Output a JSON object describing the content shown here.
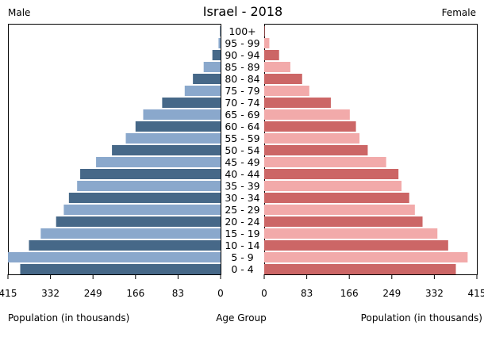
{
  "chart_data": {
    "type": "bar",
    "orientation": "horizontal",
    "layout": "population-pyramid",
    "title": "Israel - 2018",
    "left_label": "Male",
    "right_label": "Female",
    "xlabel_left": "Population (in thousands)",
    "xlabel_center": "Age Group",
    "xlabel_right": "Population (in thousands)",
    "xlim": [
      0,
      415
    ],
    "ticks": [
      "0",
      "83",
      "166",
      "249",
      "332",
      "415"
    ],
    "categories": [
      "100+",
      "95 - 99",
      "90 - 94",
      "85 - 89",
      "80 - 84",
      "75 - 79",
      "70 - 74",
      "65 - 69",
      "60 - 64",
      "55 - 59",
      "50 - 54",
      "45 - 49",
      "40 - 44",
      "35 - 39",
      "30 - 34",
      "25 - 29",
      "20 - 24",
      "15 - 19",
      "10 - 14",
      "5 - 9",
      "0 - 4"
    ],
    "series": [
      {
        "name": "Male",
        "values": [
          1,
          4,
          16,
          33,
          54,
          70,
          114,
          151,
          166,
          185,
          212,
          243,
          274,
          280,
          296,
          306,
          321,
          351,
          374,
          415,
          391
        ],
        "colors": [
          "#466888",
          "#8aa8cc"
        ]
      },
      {
        "name": "Female",
        "values": [
          1,
          10,
          29,
          51,
          74,
          88,
          130,
          167,
          179,
          186,
          202,
          238,
          262,
          268,
          283,
          294,
          309,
          338,
          359,
          397,
          374
        ],
        "colors": [
          "#cc6666",
          "#f2aaaa"
        ]
      }
    ]
  }
}
